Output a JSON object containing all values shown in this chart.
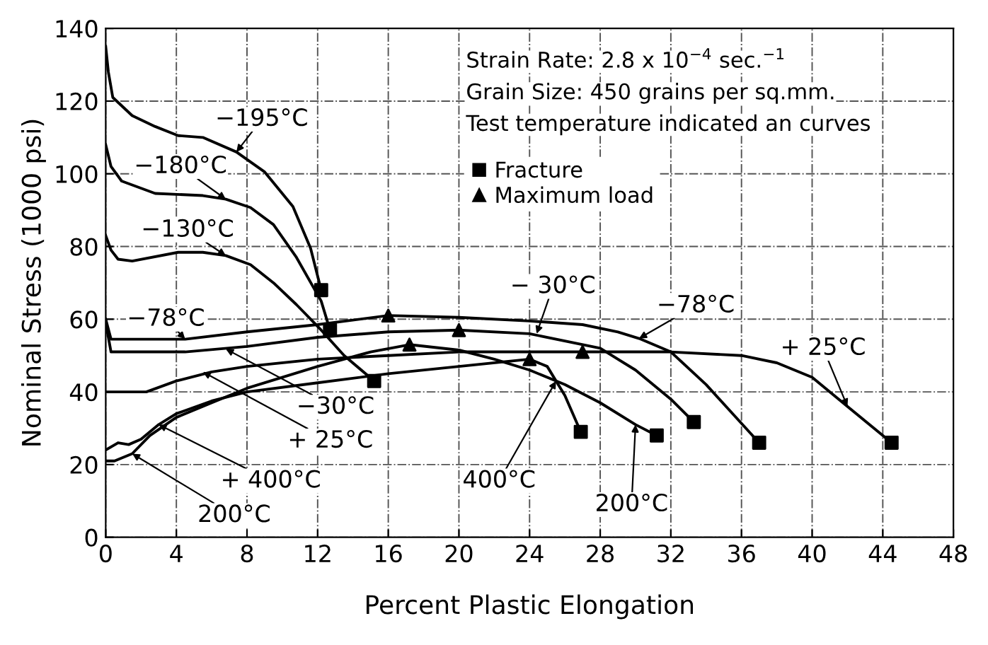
{
  "chart_data": {
    "type": "line",
    "xlabel": "Percent Plastic Elongation",
    "ylabel": "Nominal Stress (1000 psi)",
    "xlim": [
      0,
      48
    ],
    "xticks": [
      0,
      4,
      8,
      12,
      16,
      20,
      24,
      28,
      32,
      36,
      40,
      44,
      48
    ],
    "ylim": [
      0,
      140
    ],
    "yticks": [
      0,
      20,
      40,
      60,
      80,
      100,
      120,
      140
    ],
    "grid": true,
    "legend": "top right",
    "line_style": "solid",
    "marker": "none",
    "series": [
      {
        "color": "#000000",
        "x": [
          0,
          0.15,
          0.4,
          1.5,
          2.8,
          4.1,
          5.5,
          7.4,
          9,
          10.6,
          11.6,
          12.2
        ],
        "values": [
          135,
          128,
          121,
          116,
          113,
          110.5,
          110,
          106,
          100.5,
          91,
          79.5,
          68
        ]
      },
      {
        "color": "#000000",
        "x": [
          0,
          0.3,
          0.9,
          2.8,
          5.5,
          6.8,
          8.2,
          9.5,
          10.8,
          12.2,
          12.7
        ],
        "values": [
          108,
          102,
          98,
          94.6,
          94,
          93,
          90.7,
          86,
          77,
          65,
          57
        ]
      },
      {
        "color": "#000000",
        "x": [
          0,
          0.3,
          0.7,
          1.5,
          4.1,
          5.5,
          6.8,
          8.2,
          9.5,
          10.8,
          12.2,
          13.5,
          15.2
        ],
        "values": [
          83,
          79,
          76.5,
          76,
          78.4,
          78.4,
          77.5,
          75,
          70,
          64,
          57,
          50,
          43
        ]
      },
      {
        "color": "#000000",
        "x": [
          0,
          0.3,
          2,
          4.5,
          8,
          12,
          16,
          20,
          24,
          27,
          29,
          30.2,
          32,
          34,
          35.5,
          37
        ],
        "values": [
          60,
          54.5,
          54.5,
          54.5,
          56.5,
          58.5,
          61,
          60.5,
          59.5,
          58.5,
          56.5,
          54.7,
          51,
          42,
          34,
          26
        ]
      },
      {
        "color": "#000000",
        "x": [
          0,
          0.3,
          4.5,
          8,
          12,
          16,
          20,
          24,
          28,
          30,
          32,
          33.3
        ],
        "values": [
          59,
          51,
          51,
          52.5,
          55,
          56.5,
          57,
          56,
          52,
          46,
          38,
          31.7
        ]
      },
      {
        "color": "#000000",
        "x": [
          0,
          2.3,
          4,
          6,
          8,
          12,
          16,
          20,
          24,
          27,
          32,
          36,
          38,
          40,
          42,
          43.5,
          44.5
        ],
        "values": [
          40,
          40,
          43,
          45.5,
          47,
          49,
          50,
          51,
          51,
          51,
          51,
          50,
          48,
          44,
          36,
          30,
          26
        ]
      },
      {
        "color": "#000000",
        "x": [
          0,
          0.5,
          1.5,
          2.5,
          4,
          6,
          8,
          12,
          15,
          17.2,
          20,
          22,
          24,
          26,
          28,
          30,
          31.2
        ],
        "values": [
          21,
          21,
          23,
          28,
          33,
          37,
          41,
          47,
          51,
          53,
          51.5,
          49,
          46,
          42,
          37,
          31,
          28
        ]
      },
      {
        "color": "#000000",
        "x": [
          0,
          0.7,
          1.3,
          2,
          3,
          4,
          6,
          8,
          12,
          16,
          20,
          24,
          25,
          26,
          26.9
        ],
        "values": [
          24,
          26,
          25.5,
          27,
          31,
          34,
          37.5,
          40,
          42.5,
          45,
          47,
          49,
          47,
          39,
          29
        ]
      },
      {
        "type": "scatter",
        "name": "Fracture",
        "marker": "square",
        "color": "#000000",
        "x": [
          12.2,
          12.7,
          15.2,
          26.9,
          31.2,
          33.3,
          37,
          44.5
        ],
        "values": [
          68,
          57,
          43,
          29,
          28,
          31.7,
          26,
          26
        ]
      },
      {
        "type": "scatter",
        "name": "Maximum load",
        "marker": "triangle",
        "color": "#000000",
        "x": [
          16,
          20,
          17.2,
          24,
          27
        ],
        "values": [
          61,
          57,
          53,
          49,
          51
        ]
      }
    ],
    "annotations": [
      "Strain Rate: 2.8 x 10$^{−4}$ sec.$^{−1}$",
      "Grain Size: 450 grains per sq.mm.",
      "Test temperature indicated an curves",
      {
        "text": "−195°C",
        "x": 7.4,
        "y": 106
      },
      {
        "text": "−180°C",
        "x": 6.8,
        "y": 93
      },
      {
        "text": "−130°C",
        "x": 6.8,
        "y": 77.5
      },
      {
        "text": "−78°C",
        "x": 4.5,
        "y": 54.5
      },
      {
        "text": "− 30°C",
        "x": 24.4,
        "y": 56
      },
      {
        "text": "−78°C",
        "x": 30.2,
        "y": 54.7
      },
      {
        "text": "+ 25°C",
        "x": 42,
        "y": 36
      },
      {
        "text": "−30°C",
        "x": 6.8,
        "y": 51.8
      },
      {
        "text": "+ 25°C",
        "x": 5.5,
        "y": 45.5
      },
      {
        "text": "+ 400°C",
        "x": 3,
        "y": 31
      },
      {
        "text": "200°C",
        "x": 1.5,
        "y": 23
      },
      {
        "text": "400°C",
        "x": 25.5,
        "y": 43
      },
      {
        "text": "200°C",
        "x": 30,
        "y": 31
      }
    ]
  }
}
